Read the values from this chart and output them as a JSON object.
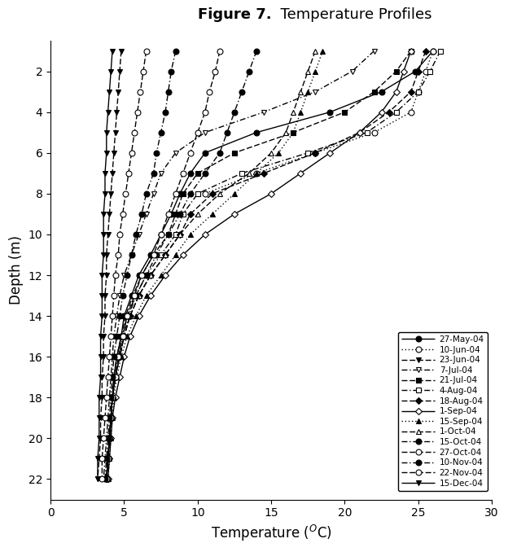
{
  "title_bold": "Figure 7.",
  "title_normal": "  Temperature Profiles",
  "xlabel": "Temperature ($^O$C)",
  "ylabel": "Depth (m)",
  "xlim": [
    0,
    30
  ],
  "ylim": [
    23.0,
    0.5
  ],
  "xticks": [
    0,
    5,
    10,
    15,
    20,
    25,
    30
  ],
  "yticks": [
    2,
    4,
    6,
    8,
    10,
    12,
    14,
    16,
    18,
    20,
    22
  ],
  "series": [
    {
      "label": "27-May-04",
      "linestyle": "solid",
      "marker": "o",
      "fillstyle": "full",
      "depth": [
        1,
        2,
        3,
        4,
        5,
        6,
        7,
        8,
        9,
        10,
        11,
        12,
        13,
        14,
        15,
        16,
        17,
        18,
        19,
        20,
        21,
        22
      ],
      "temp": [
        26.0,
        24.8,
        22.5,
        19.0,
        14.0,
        10.5,
        9.5,
        8.8,
        8.2,
        7.5,
        6.8,
        6.0,
        5.5,
        5.0,
        4.8,
        4.5,
        4.3,
        4.2,
        4.1,
        4.0,
        3.9,
        3.8
      ]
    },
    {
      "label": "10-Jun-04",
      "linestyle": "dotted",
      "marker": "o",
      "fillstyle": "none",
      "depth": [
        1,
        2,
        3,
        4,
        5,
        6,
        7,
        8
      ],
      "temp": [
        26.0,
        25.5,
        25.0,
        24.5,
        22.0,
        18.0,
        14.0,
        10.5
      ]
    },
    {
      "label": "23-Jun-04",
      "linestyle": "dashed",
      "marker": "v",
      "fillstyle": "full",
      "depth": [
        1,
        2,
        3,
        4,
        5,
        6,
        7,
        8,
        9,
        10,
        11,
        12,
        13,
        14,
        15,
        16,
        17,
        18,
        19,
        20,
        21,
        22
      ],
      "temp": [
        4.8,
        4.7,
        4.6,
        4.5,
        4.4,
        4.3,
        4.2,
        4.1,
        4.0,
        3.9,
        3.8,
        3.8,
        3.7,
        3.7,
        3.6,
        3.6,
        3.5,
        3.5,
        3.4,
        3.4,
        3.3,
        3.2
      ]
    },
    {
      "label": "7-Jul-04",
      "linestyle": "dashdot",
      "marker": "v",
      "fillstyle": "none",
      "depth": [
        1,
        2,
        3,
        4,
        5,
        6,
        7,
        8,
        9,
        10,
        11,
        12,
        13,
        14,
        15,
        16,
        17,
        18,
        19,
        20,
        21,
        22
      ],
      "temp": [
        22.0,
        20.5,
        18.0,
        14.5,
        10.5,
        8.5,
        7.5,
        7.0,
        6.5,
        6.0,
        5.5,
        5.0,
        4.7,
        4.5,
        4.3,
        4.2,
        4.1,
        4.0,
        3.9,
        3.8,
        3.7,
        3.6
      ]
    },
    {
      "label": "21-Jul-04",
      "linestyle": "dashed",
      "marker": "s",
      "fillstyle": "full",
      "depth": [
        1,
        2,
        3,
        4,
        5,
        6,
        7,
        8,
        9,
        10,
        11,
        12,
        13,
        14,
        15,
        16,
        17,
        18,
        19,
        20,
        21,
        22
      ],
      "temp": [
        24.5,
        23.5,
        22.0,
        20.0,
        16.5,
        12.5,
        10.0,
        9.0,
        8.5,
        8.0,
        7.0,
        6.2,
        5.6,
        5.1,
        4.8,
        4.5,
        4.3,
        4.2,
        4.1,
        4.0,
        3.9,
        3.8
      ]
    },
    {
      "label": "4-Aug-04",
      "linestyle": "dashdot",
      "marker": "s",
      "fillstyle": "none",
      "depth": [
        1,
        2,
        3,
        4,
        5,
        6,
        7,
        8,
        9,
        10,
        11,
        12,
        13,
        14,
        15,
        16,
        17,
        18,
        19,
        20,
        21,
        22
      ],
      "temp": [
        26.5,
        25.8,
        25.0,
        23.5,
        21.5,
        17.5,
        13.0,
        10.0,
        9.0,
        8.5,
        7.5,
        6.5,
        5.8,
        5.2,
        4.9,
        4.6,
        4.4,
        4.2,
        4.1,
        4.0,
        3.9,
        3.8
      ]
    },
    {
      "label": "18-Aug-04",
      "linestyle": "dashed",
      "marker": "D",
      "fillstyle": "full",
      "depth": [
        1,
        2,
        3,
        4,
        5,
        6,
        7,
        8,
        9,
        10,
        11,
        12,
        13,
        14,
        15,
        16,
        17,
        18,
        19,
        20,
        21,
        22
      ],
      "temp": [
        25.5,
        25.0,
        24.5,
        23.0,
        21.0,
        18.0,
        14.5,
        11.0,
        9.5,
        8.8,
        7.8,
        6.8,
        6.0,
        5.4,
        5.0,
        4.7,
        4.4,
        4.2,
        4.1,
        4.0,
        3.9,
        3.8
      ]
    },
    {
      "label": "1-Sep-04",
      "linestyle": "solid",
      "marker": "D",
      "fillstyle": "none",
      "depth": [
        1,
        2,
        3,
        4,
        5,
        6,
        7,
        8,
        9,
        10,
        11,
        12,
        13,
        14,
        15,
        16,
        17,
        18,
        19,
        20,
        21,
        22
      ],
      "temp": [
        24.5,
        24.0,
        23.5,
        22.5,
        21.0,
        19.0,
        17.0,
        15.0,
        12.5,
        10.5,
        9.0,
        7.8,
        6.8,
        6.0,
        5.4,
        5.0,
        4.7,
        4.4,
        4.2,
        4.1,
        4.0,
        3.9
      ]
    },
    {
      "label": "15-Sep-04",
      "linestyle": "dotted",
      "marker": "^",
      "fillstyle": "full",
      "depth": [
        1,
        2,
        3,
        4,
        5,
        6,
        7,
        8,
        9,
        10,
        11,
        12,
        13,
        14,
        15,
        16,
        17,
        18,
        19,
        20,
        21,
        22
      ],
      "temp": [
        18.5,
        18.0,
        17.5,
        17.0,
        16.5,
        15.5,
        14.0,
        12.5,
        11.0,
        9.5,
        8.5,
        7.5,
        6.5,
        5.8,
        5.2,
        4.8,
        4.5,
        4.3,
        4.2,
        4.1,
        4.0,
        3.9
      ]
    },
    {
      "label": "1-Oct-04",
      "linestyle": "dashed",
      "marker": "^",
      "fillstyle": "none",
      "depth": [
        1,
        2,
        3,
        4,
        5,
        6,
        7,
        8,
        9,
        10,
        11,
        12,
        13,
        14,
        15,
        16,
        17,
        18,
        19,
        20,
        21,
        22
      ],
      "temp": [
        18.0,
        17.5,
        17.0,
        16.5,
        16.0,
        15.0,
        13.5,
        11.5,
        10.0,
        8.8,
        7.8,
        6.8,
        6.0,
        5.4,
        5.0,
        4.7,
        4.4,
        4.2,
        4.1,
        4.0,
        3.9,
        3.8
      ]
    },
    {
      "label": "15-Oct-04",
      "linestyle": "dashdot",
      "marker": "o",
      "fillstyle": "full",
      "depth": [
        1,
        2,
        3,
        4,
        5,
        6,
        7,
        8,
        9,
        10,
        11,
        12,
        13,
        14,
        15,
        16,
        17,
        18,
        19,
        20,
        21,
        22
      ],
      "temp": [
        14.0,
        13.5,
        13.0,
        12.5,
        12.0,
        11.5,
        10.5,
        9.5,
        8.8,
        8.0,
        7.2,
        6.5,
        5.8,
        5.3,
        5.0,
        4.7,
        4.4,
        4.2,
        4.1,
        4.0,
        3.9,
        3.8
      ]
    },
    {
      "label": "27-Oct-04",
      "linestyle": "dashed",
      "marker": "o",
      "fillstyle": "none",
      "depth": [
        1,
        2,
        3,
        4,
        5,
        6,
        7,
        8,
        9,
        10,
        11,
        12,
        13,
        14,
        15,
        16,
        17,
        18,
        19,
        20,
        21,
        22
      ],
      "temp": [
        11.5,
        11.2,
        10.8,
        10.5,
        10.0,
        9.5,
        9.0,
        8.5,
        8.0,
        7.5,
        7.0,
        6.2,
        5.7,
        5.2,
        4.9,
        4.6,
        4.4,
        4.2,
        4.1,
        4.0,
        3.9,
        3.8
      ]
    },
    {
      "label": "10-Nov-04",
      "linestyle": "dashdot",
      "marker": "o",
      "fillstyle": "full",
      "depth": [
        1,
        2,
        3,
        4,
        5,
        6,
        7,
        8,
        9,
        10,
        11,
        12,
        13,
        14,
        15,
        16,
        17,
        18,
        19,
        20,
        21,
        22
      ],
      "temp": [
        8.5,
        8.2,
        8.0,
        7.8,
        7.5,
        7.2,
        7.0,
        6.5,
        6.2,
        5.8,
        5.5,
        5.2,
        4.9,
        4.7,
        4.5,
        4.3,
        4.2,
        4.1,
        4.0,
        3.9,
        3.8,
        3.7
      ]
    },
    {
      "label": "22-Nov-04",
      "linestyle": "dashed",
      "marker": "o",
      "fillstyle": "none",
      "depth": [
        1,
        2,
        3,
        4,
        5,
        6,
        7,
        8,
        9,
        10,
        11,
        12,
        13,
        14,
        15,
        16,
        17,
        18,
        19,
        20,
        21,
        22
      ],
      "temp": [
        6.5,
        6.3,
        6.1,
        5.9,
        5.7,
        5.5,
        5.3,
        5.1,
        4.9,
        4.7,
        4.6,
        4.4,
        4.3,
        4.2,
        4.1,
        4.0,
        3.9,
        3.8,
        3.7,
        3.6,
        3.5,
        3.5
      ]
    },
    {
      "label": "15-Dec-04",
      "linestyle": "solid",
      "marker": "v",
      "fillstyle": "full",
      "depth": [
        1,
        2,
        3,
        4,
        5,
        6,
        7,
        8,
        9,
        10,
        11,
        12,
        13,
        14,
        15,
        16,
        17,
        18,
        19,
        20,
        21,
        22
      ],
      "temp": [
        4.2,
        4.1,
        4.0,
        3.9,
        3.8,
        3.8,
        3.7,
        3.7,
        3.6,
        3.6,
        3.6,
        3.5,
        3.5,
        3.5,
        3.4,
        3.4,
        3.4,
        3.3,
        3.3,
        3.3,
        3.2,
        3.2
      ]
    }
  ]
}
